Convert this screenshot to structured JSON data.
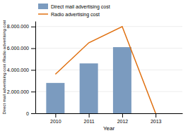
{
  "chart_data": {
    "type": "bar",
    "x": [
      2010,
      2011,
      2012,
      2013
    ],
    "xlim": [
      2009.4,
      2013.8
    ],
    "xticks": [
      2010,
      2011,
      2012,
      2013
    ],
    "ylim": [
      0,
      8500000
    ],
    "yticks": [
      0,
      {
        "value": 2000000,
        "label": "2.000.000"
      },
      {
        "value": 4000000,
        "label": "4.000.000"
      },
      {
        "value": 6000000,
        "label": "6.000.000"
      },
      {
        "value": 8000000,
        "label": "8.000.000"
      }
    ],
    "x_label": "Year",
    "y_label": "Direct mail advertising cost /Radio advertising cost",
    "grid": true,
    "legend": "top",
    "series": [
      {
        "name": "Direct mail advertising cost",
        "type": "bar",
        "color": "#7b9bbf",
        "values": [
          2800000,
          4600000,
          6100000,
          0
        ]
      },
      {
        "name": "Radio advertising cost",
        "type": "line",
        "color": "#e07010",
        "values": [
          3600000,
          6500000,
          8000000,
          0
        ]
      }
    ]
  }
}
